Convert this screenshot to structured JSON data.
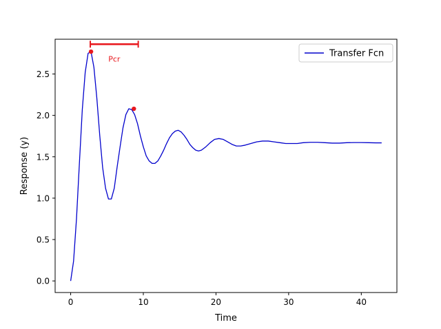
{
  "chart_data": {
    "type": "line",
    "xlabel": "Time",
    "ylabel": "Response (y)",
    "xlim": [
      -2.14,
      44.9
    ],
    "ylim": [
      -0.14,
      2.92
    ],
    "xticks": [
      0,
      10,
      20,
      30,
      40
    ],
    "xtick_labels": [
      "0",
      "10",
      "20",
      "30",
      "40"
    ],
    "yticks": [
      0.0,
      0.5,
      1.0,
      1.5,
      2.0,
      2.5
    ],
    "ytick_labels": [
      "0.0",
      "0.5",
      "1.0",
      "1.5",
      "2.0",
      "2.5"
    ],
    "grid": false,
    "legend": {
      "position": "top-right",
      "entries": [
        "Transfer Fcn"
      ]
    },
    "series": [
      {
        "name": "Transfer Fcn",
        "color": "#0000cc",
        "x": [
          0,
          0.4,
          0.8,
          1.2,
          1.6,
          2.0,
          2.4,
          2.8,
          3.2,
          3.6,
          4.0,
          4.4,
          4.8,
          5.2,
          5.6,
          6.0,
          6.4,
          6.8,
          7.2,
          7.6,
          8.0,
          8.4,
          8.8,
          9.2,
          9.6,
          10.0,
          10.4,
          10.8,
          11.2,
          11.6,
          12.0,
          12.4,
          12.8,
          13.2,
          13.6,
          14.0,
          14.4,
          14.8,
          15.2,
          15.6,
          16.0,
          16.4,
          16.8,
          17.2,
          17.6,
          18.0,
          18.6,
          19.2,
          19.8,
          20.4,
          21.0,
          21.6,
          22.2,
          22.8,
          23.4,
          24.0,
          24.8,
          25.6,
          26.4,
          27.2,
          28.0,
          28.8,
          29.6,
          30.4,
          31.2,
          32.0,
          33.0,
          34.0,
          35.0,
          36.0,
          37.0,
          38.0,
          39.0,
          40.0,
          41.0,
          42.0,
          42.8
        ],
        "y": [
          0.0,
          0.24,
          0.75,
          1.42,
          2.07,
          2.52,
          2.75,
          2.77,
          2.58,
          2.21,
          1.76,
          1.37,
          1.12,
          0.99,
          0.99,
          1.12,
          1.38,
          1.62,
          1.85,
          2.01,
          2.08,
          2.07,
          2.01,
          1.9,
          1.75,
          1.62,
          1.51,
          1.45,
          1.42,
          1.42,
          1.45,
          1.51,
          1.58,
          1.66,
          1.73,
          1.78,
          1.81,
          1.82,
          1.8,
          1.76,
          1.71,
          1.65,
          1.61,
          1.58,
          1.57,
          1.58,
          1.62,
          1.67,
          1.71,
          1.72,
          1.71,
          1.68,
          1.65,
          1.63,
          1.63,
          1.64,
          1.66,
          1.68,
          1.69,
          1.69,
          1.68,
          1.67,
          1.66,
          1.66,
          1.66,
          1.67,
          1.675,
          1.675,
          1.67,
          1.665,
          1.665,
          1.67,
          1.672,
          1.672,
          1.67,
          1.668,
          1.668
        ]
      }
    ],
    "markers": [
      {
        "x": 2.8,
        "y": 2.77,
        "color": "#e8181e"
      },
      {
        "x": 8.7,
        "y": 2.08,
        "color": "#e8181e"
      }
    ],
    "annotation": {
      "label": "Pcr",
      "x_start": 2.7,
      "x_end": 9.3,
      "y": 2.86,
      "label_x": 6.0,
      "label_y": 2.65,
      "color": "#e8181e"
    }
  }
}
